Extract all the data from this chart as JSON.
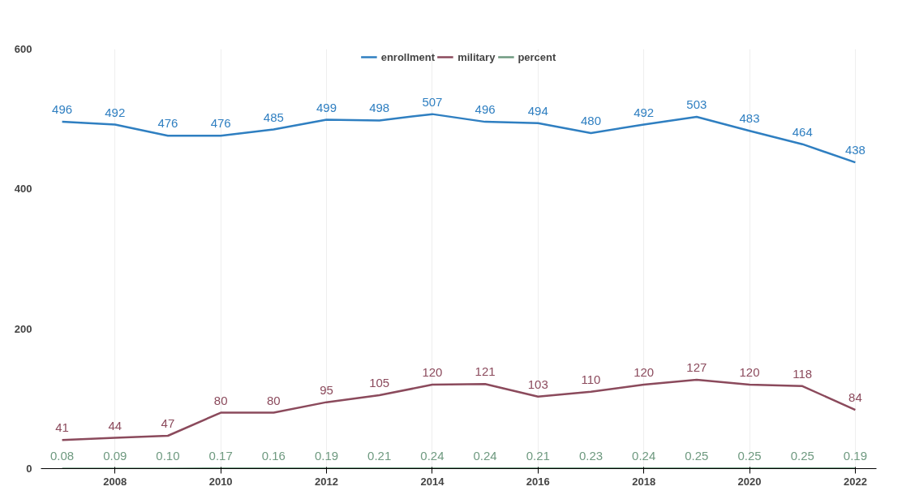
{
  "chart_data": {
    "type": "line",
    "x": [
      2007,
      2008,
      2009,
      2010,
      2011,
      2012,
      2013,
      2014,
      2015,
      2016,
      2017,
      2018,
      2019,
      2020,
      2021,
      2022
    ],
    "series": [
      {
        "name": "enrollment",
        "color": "#2f7fc1",
        "values": [
          496,
          492,
          476,
          476,
          485,
          499,
          498,
          507,
          496,
          494,
          480,
          492,
          503,
          483,
          464,
          438
        ]
      },
      {
        "name": "military",
        "color": "#8b4a5c",
        "values": [
          41,
          44,
          47,
          80,
          80,
          95,
          105,
          120,
          121,
          103,
          110,
          120,
          127,
          120,
          118,
          84
        ]
      },
      {
        "name": "percent",
        "color": "#6f9a80",
        "values": [
          0.08,
          0.09,
          0.1,
          0.17,
          0.16,
          0.19,
          0.21,
          0.24,
          0.24,
          0.21,
          0.23,
          0.24,
          0.25,
          0.25,
          0.25,
          0.19
        ],
        "value_labels": [
          "0.08",
          "0.09",
          "0.10",
          "0.17",
          "0.16",
          "0.19",
          "0.21",
          "0.24",
          "0.24",
          "0.21",
          "0.23",
          "0.24",
          "0.25",
          "0.25",
          "0.25",
          "0.19"
        ]
      }
    ],
    "xlim": [
      2006.6,
      2022.4
    ],
    "xticks": [
      2008,
      2010,
      2012,
      2014,
      2016,
      2018,
      2020,
      2022
    ],
    "ylim": [
      0,
      600
    ],
    "yticks": [
      0,
      200,
      400,
      600
    ],
    "grid": "x",
    "legend": "top",
    "data_labels": true,
    "marker": "none",
    "line_style": "solid"
  }
}
